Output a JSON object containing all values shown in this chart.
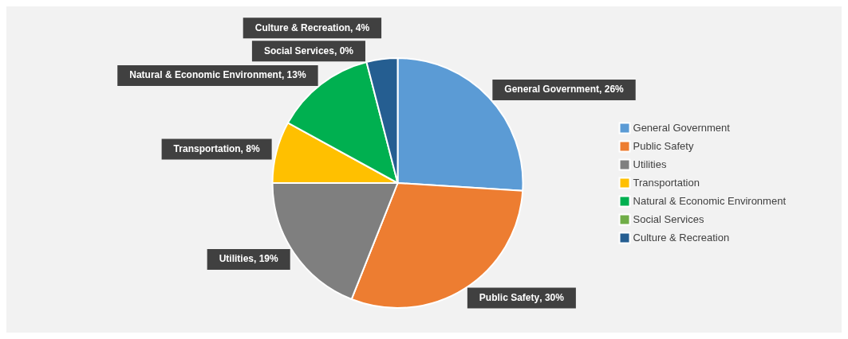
{
  "chart_data": {
    "type": "pie",
    "categories": [
      "General Government",
      "Public Safety",
      "Utilities",
      "Transportation",
      "Natural & Economic Environment",
      "Social Services",
      "Culture & Recreation"
    ],
    "values": [
      26,
      30,
      19,
      8,
      13,
      0,
      4
    ],
    "colors": [
      "#5b9bd5",
      "#ed7d31",
      "#7f7f7f",
      "#ffc000",
      "#00b050",
      "#70ad47",
      "#255e91"
    ],
    "value_labels": [
      ", 26%",
      ", 30%",
      ", 19%",
      ", 8%",
      ", 13%",
      ", 0%",
      ", 4%"
    ],
    "legend": "right"
  }
}
